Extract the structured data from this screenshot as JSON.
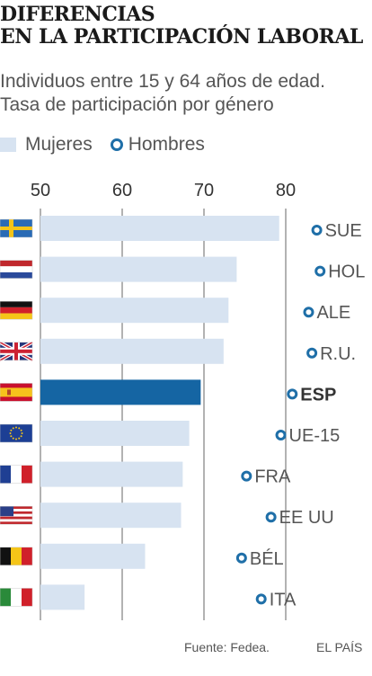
{
  "header": {
    "title_line1": "DIFERENCIAS",
    "title_line2": "EN LA PARTICIPACIÓN LABORAL",
    "subtitle_line1": "Individuos entre 15 y 64 años de edad.",
    "subtitle_line2": "Tasa de participación por género"
  },
  "legend": {
    "women_label": "Mujeres",
    "men_label": "Hombres"
  },
  "footer": {
    "source": "Fuente: Fedea.",
    "publisher": "EL PAÍS"
  },
  "colors": {
    "women_bar": "#d7e3f1",
    "women_bar_highlight": "#1565a3",
    "men_marker": "#1f6fa8",
    "gridline": "#666666"
  },
  "chart_data": {
    "type": "bar",
    "orientation": "horizontal",
    "xlim": [
      50,
      85
    ],
    "ticks": [
      50,
      60,
      70,
      80
    ],
    "grid": true,
    "legend_position": "top-left",
    "categories": [
      "SUE",
      "HOL",
      "ALE",
      "R.U.",
      "ESP",
      "UE-15",
      "FRA",
      "EE UU",
      "BÉL",
      "ITA"
    ],
    "flags": [
      "flag-sweden",
      "flag-netherlands",
      "flag-germany",
      "flag-united-kingdom",
      "flag-spain",
      "flag-european-union",
      "flag-france",
      "flag-united-states",
      "flag-belgium",
      "flag-italy"
    ],
    "highlight": "ESP",
    "series": [
      {
        "name": "Mujeres",
        "values": [
          79.2,
          74.0,
          73.0,
          72.4,
          69.6,
          68.2,
          67.4,
          67.2,
          62.8,
          55.4
        ]
      },
      {
        "name": "Hombres",
        "values": [
          83.8,
          84.2,
          82.8,
          83.2,
          80.8,
          79.4,
          75.2,
          78.2,
          74.6,
          77.0
        ]
      }
    ]
  }
}
